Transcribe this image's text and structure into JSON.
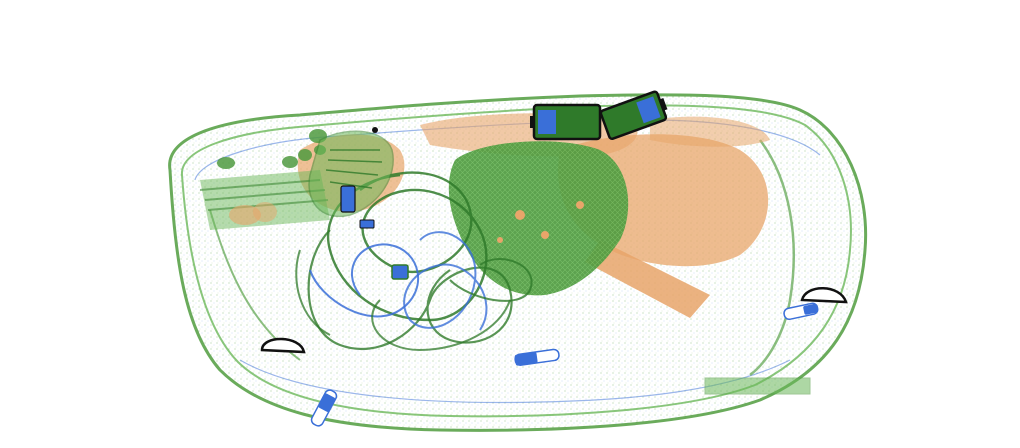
{
  "image": {
    "kind": "x-ray baggage scan",
    "colors": {
      "background": "#ffffff",
      "organic": "#e8a56a",
      "mixed": "#5aa24a",
      "mixed_dark": "#3f8a36",
      "inorganic": "#3a6fd8",
      "dense": "#111111"
    }
  }
}
